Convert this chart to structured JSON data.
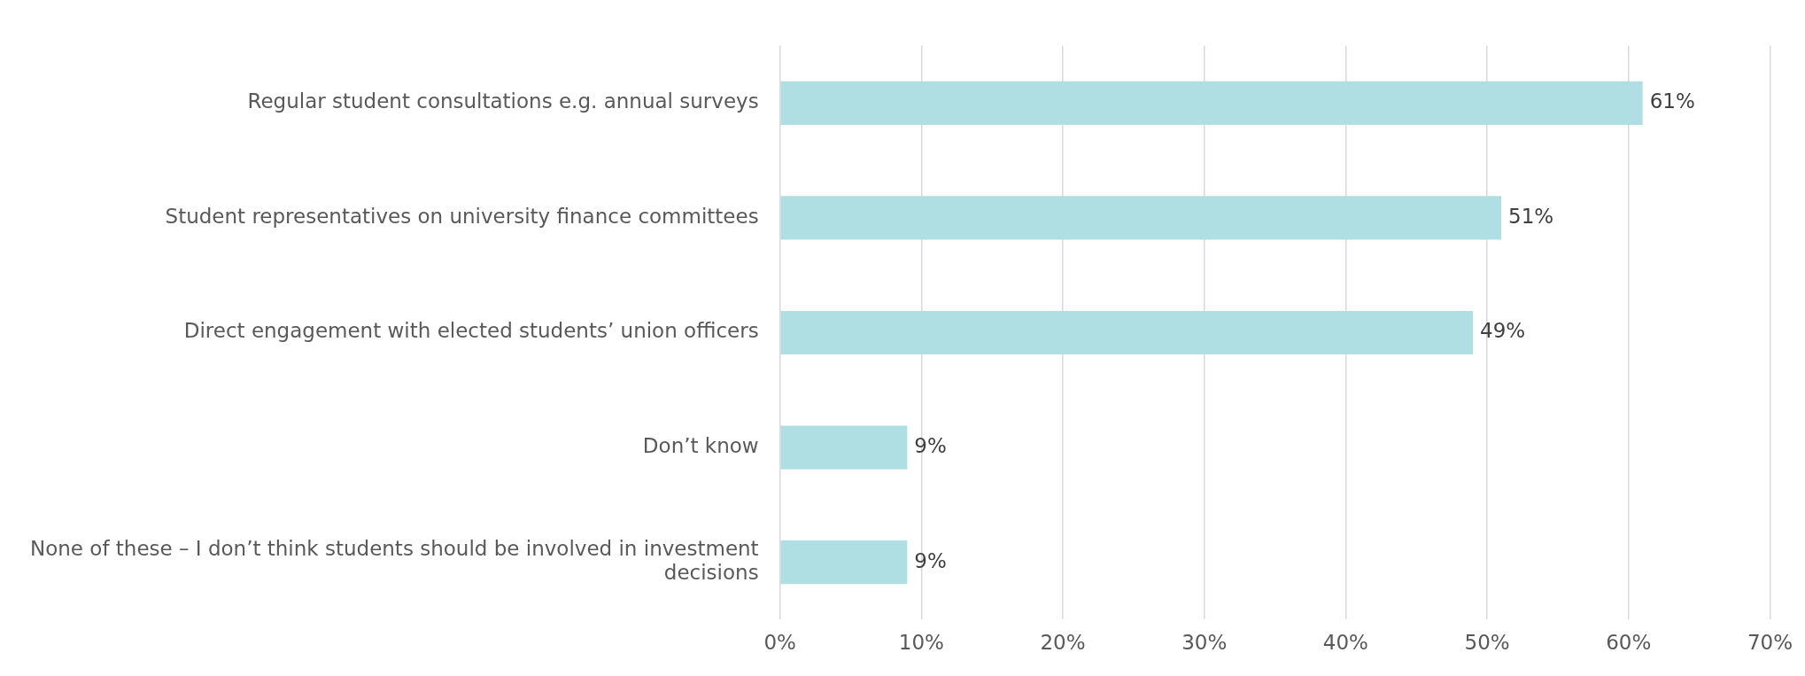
{
  "chart_data": {
    "type": "bar",
    "orientation": "horizontal",
    "categories": [
      "Regular student consultations e.g. annual surveys",
      "Student representatives on university finance committees",
      "Direct engagement with elected students’ union officers",
      "Don’t know",
      "None of these – I don’t think students should be involved in investment decisions"
    ],
    "values": [
      61,
      51,
      49,
      9,
      9
    ],
    "value_labels": [
      "61%",
      "51%",
      "49%",
      "9%",
      "9%"
    ],
    "color": "#b0dfe3",
    "xlim": [
      0,
      70
    ],
    "xticks": [
      {
        "value": 0,
        "label": "0%"
      },
      {
        "value": 10,
        "label": "10%"
      },
      {
        "value": 20,
        "label": "20%"
      },
      {
        "value": 30,
        "label": "30%"
      },
      {
        "value": 40,
        "label": "40%"
      },
      {
        "value": 50,
        "label": "50%"
      },
      {
        "value": 60,
        "label": "60%"
      },
      {
        "value": 70,
        "label": "70%"
      }
    ],
    "grid": "x",
    "legend": false
  }
}
